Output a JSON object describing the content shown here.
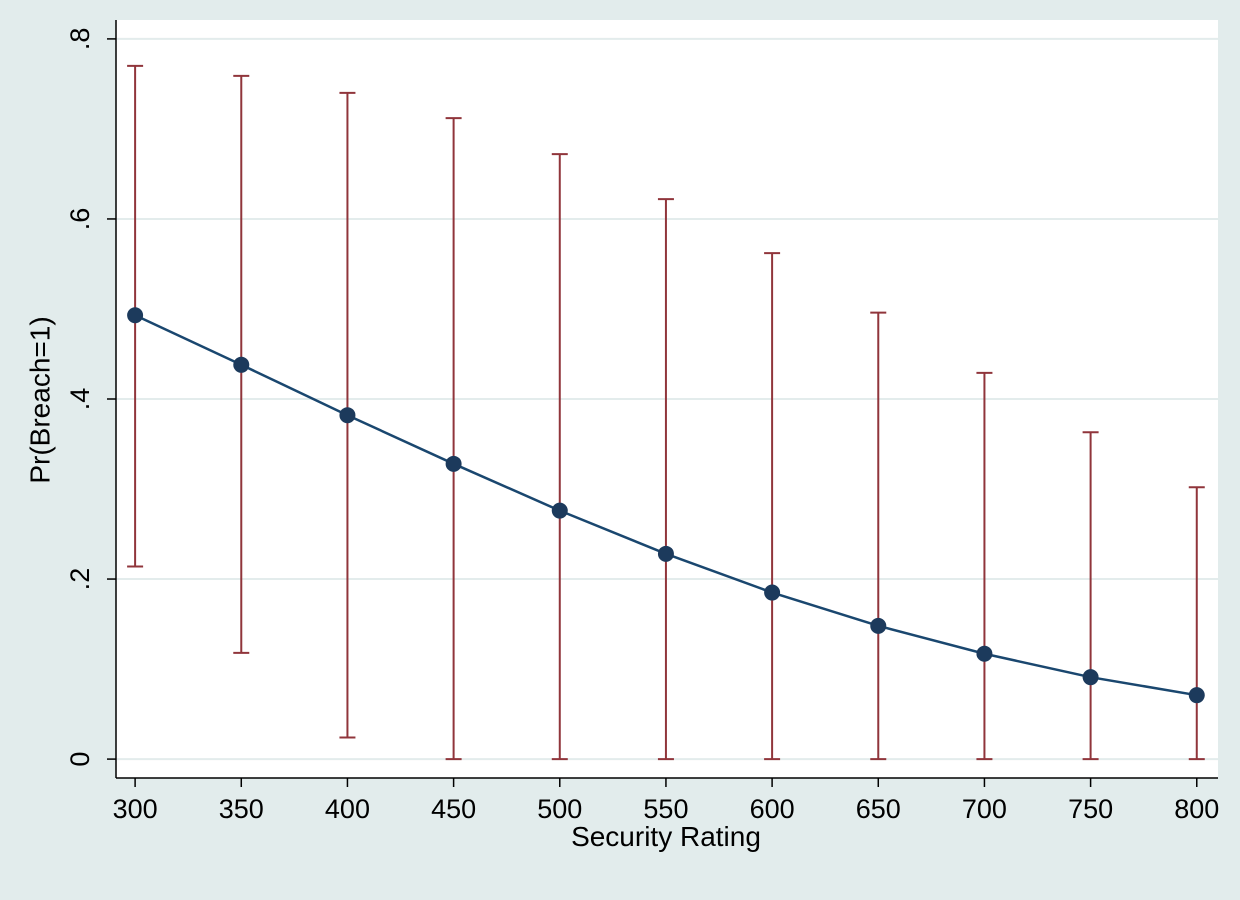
{
  "chart_data": {
    "type": "line",
    "x_label": "Security Rating",
    "y_label": "Pr(Breach=1)",
    "x": [
      300,
      350,
      400,
      450,
      500,
      550,
      600,
      650,
      700,
      750,
      800
    ],
    "values": [
      0.493,
      0.438,
      0.382,
      0.328,
      0.276,
      0.228,
      0.185,
      0.148,
      0.117,
      0.091,
      0.071
    ],
    "ci_lower": [
      0.214,
      0.118,
      0.024,
      0,
      0,
      0,
      0,
      0,
      0,
      0,
      0
    ],
    "ci_upper": [
      0.77,
      0.759,
      0.74,
      0.712,
      0.672,
      0.622,
      0.562,
      0.496,
      0.429,
      0.363,
      0.302
    ],
    "color": "#1a476f",
    "marker_color": "#1c3a5c",
    "error_bar_color": "#90353b",
    "xlim": [
      291,
      810
    ],
    "ylim": [
      -0.021,
      0.821
    ],
    "xticks": [
      300,
      350,
      400,
      450,
      500,
      550,
      600,
      650,
      700,
      750,
      800
    ],
    "yticks": [
      0,
      {
        "value": 0.2,
        "label": ".2"
      },
      {
        "value": 0.4,
        "label": ".4"
      },
      {
        "value": 0.6,
        "label": ".6"
      },
      {
        "value": 0.8,
        "label": ".8"
      }
    ],
    "grid": true
  }
}
